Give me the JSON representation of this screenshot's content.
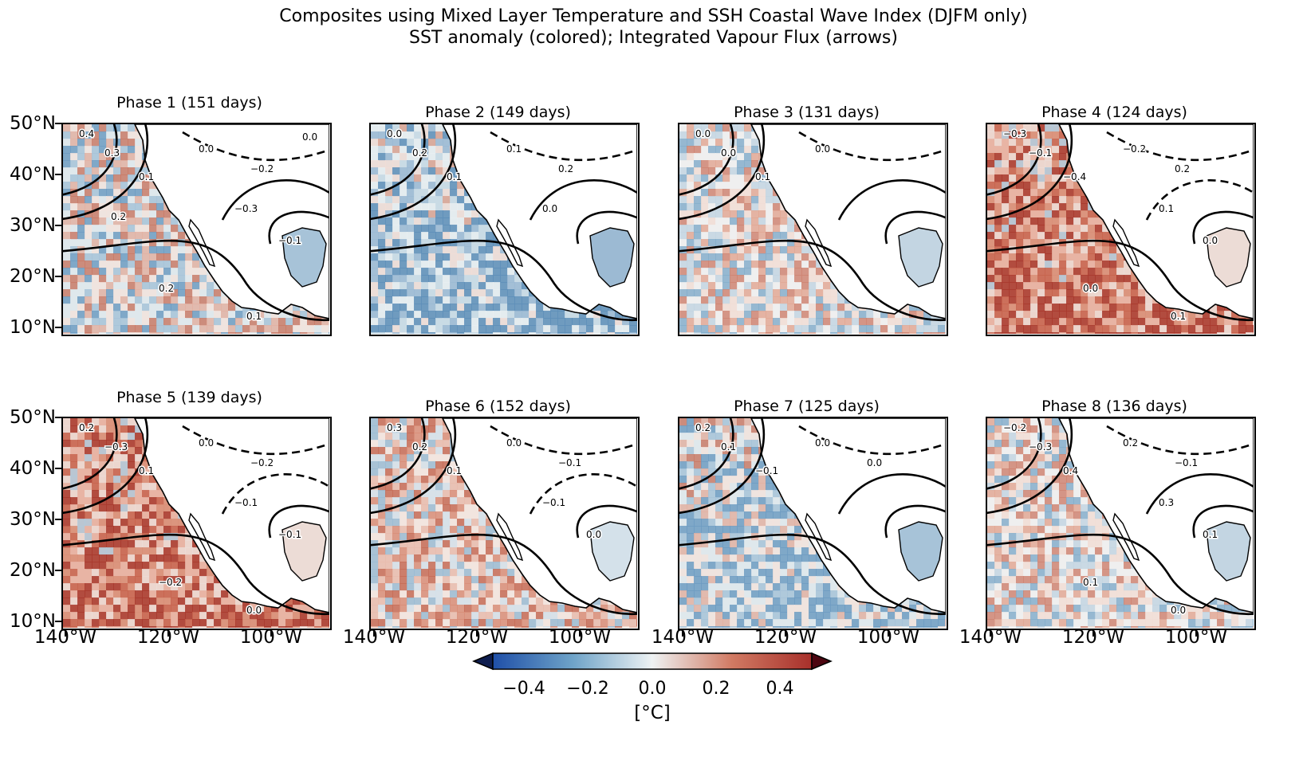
{
  "title_line1": "Composites using Mixed Layer Temperature and SSH Coastal Wave Index (DJFM only)",
  "title_line2": "SST anomaly (colored); Integrated Vapour Flux (arrows)",
  "panels": [
    {
      "title": "Phase 1 (151 days)",
      "tone": "mixed-blue",
      "labels": [
        "0.4",
        "0.3",
        "0.1",
        "0.0",
        "−0.2",
        "−0.3",
        "−0.1",
        "0.2",
        "0.1",
        "0.2",
        "0.0"
      ]
    },
    {
      "title": "Phase 2 (149 days)",
      "tone": "blue",
      "labels": [
        "0.0",
        "0.2",
        "0.1",
        "0.1",
        "0.2",
        "0.0"
      ]
    },
    {
      "title": "Phase 3 (131 days)",
      "tone": "mixed",
      "labels": [
        "0.0",
        "0.0",
        "0.1",
        "0.0"
      ]
    },
    {
      "title": "Phase 4 (124 days)",
      "tone": "red",
      "labels": [
        "−0.3",
        "−0.1",
        "−0.4",
        "−0.2",
        "0.2",
        "0.1",
        "0.0",
        "0.0",
        "0.1"
      ]
    },
    {
      "title": "Phase 5 (139 days)",
      "tone": "red",
      "labels": [
        "0.2",
        "−0.3",
        "0.1",
        "0.0",
        "−0.2",
        "−0.1",
        "−0.1",
        "−0.2",
        "0.0"
      ]
    },
    {
      "title": "Phase 6 (152 days)",
      "tone": "mixed-red",
      "labels": [
        "0.3",
        "0.2",
        "0.1",
        "0.0",
        "−0.1",
        "−0.1",
        "0.0"
      ]
    },
    {
      "title": "Phase 7 (125 days)",
      "tone": "mixed-blue",
      "labels": [
        "0.2",
        "0.1",
        "−0.1",
        "0.0",
        "0.0"
      ]
    },
    {
      "title": "Phase 8 (136 days)",
      "tone": "mixed",
      "labels": [
        "−0.2",
        "−0.3",
        "0.4",
        "0.2",
        "−0.1",
        "0.3",
        "0.1",
        "0.1",
        "0.0"
      ]
    }
  ],
  "y_ticks": [
    "50°N",
    "40°N",
    "30°N",
    "20°N",
    "10°N"
  ],
  "x_ticks": [
    "140°W",
    "120°W",
    "100°W"
  ],
  "colorbar": {
    "ticks": [
      "−0.4",
      "−0.2",
      "0.0",
      "0.2",
      "0.4"
    ],
    "unit": "[°C]",
    "colors": [
      "#0f1e4f",
      "#1f4fa8",
      "#6ea3c8",
      "#eef2f3",
      "#f2e6e2",
      "#d17a63",
      "#a8302b",
      "#4d0611"
    ]
  }
}
